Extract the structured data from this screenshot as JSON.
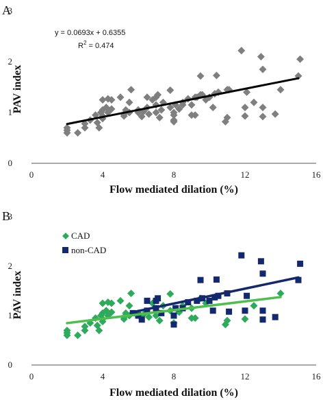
{
  "chart_data": [
    {
      "panel_label": "A",
      "type": "scatter",
      "xlabel": "Flow mediated dilation (%)",
      "ylabel": "PAV index",
      "xlim": [
        0,
        16
      ],
      "ylim": [
        0,
        3
      ],
      "xticks": [
        0,
        4,
        8,
        12,
        16
      ],
      "yticks": [
        0,
        1,
        2,
        3
      ],
      "grid": false,
      "annotation": {
        "equation": "y = 0.0693x + 0.6355",
        "r2_prefix": "R",
        "r2_sup": "2",
        "r2_suffix": " = 0.474"
      },
      "trendline": {
        "slope": 0.0693,
        "intercept": 0.6355,
        "x_range": [
          2.0,
          15.0
        ],
        "color": "#000000"
      },
      "series": [
        {
          "marker": "diamond",
          "color": "#7f7f7f",
          "points": [
            [
              2.0,
              0.6
            ],
            [
              2.0,
              0.65
            ],
            [
              2.0,
              0.7
            ],
            [
              2.6,
              0.6
            ],
            [
              3.0,
              0.7
            ],
            [
              3.0,
              0.78
            ],
            [
              3.3,
              0.85
            ],
            [
              3.6,
              0.95
            ],
            [
              3.7,
              0.8
            ],
            [
              3.8,
              0.7
            ],
            [
              3.9,
              1.0
            ],
            [
              4.0,
              0.88
            ],
            [
              4.0,
              0.93
            ],
            [
              4.0,
              1.05
            ],
            [
              4.0,
              1.25
            ],
            [
              4.2,
              1.1
            ],
            [
              4.3,
              1.0
            ],
            [
              4.3,
              1.27
            ],
            [
              4.5,
              1.25
            ],
            [
              4.5,
              1.07
            ],
            [
              5.0,
              1.3
            ],
            [
              5.2,
              0.97
            ],
            [
              5.2,
              0.93
            ],
            [
              5.3,
              1.05
            ],
            [
              5.5,
              1.0
            ],
            [
              5.5,
              1.2
            ],
            [
              5.6,
              1.45
            ],
            [
              6.0,
              1.05
            ],
            [
              6.0,
              1.0
            ],
            [
              6.2,
              0.92
            ],
            [
              6.3,
              1.02
            ],
            [
              6.5,
              1.3
            ],
            [
              6.5,
              1.1
            ],
            [
              6.6,
              0.97
            ],
            [
              6.8,
              1.25
            ],
            [
              7.0,
              1.3
            ],
            [
              7.0,
              1.15
            ],
            [
              7.0,
              1.0
            ],
            [
              7.1,
              1.35
            ],
            [
              7.2,
              0.9
            ],
            [
              7.3,
              1.05
            ],
            [
              7.4,
              1.2
            ],
            [
              7.8,
              1.44
            ],
            [
              7.8,
              1.1
            ],
            [
              8.0,
              1.0
            ],
            [
              8.0,
              0.95
            ],
            [
              8.0,
              0.85
            ],
            [
              8.0,
              0.82
            ],
            [
              8.1,
              1.15
            ],
            [
              8.3,
              1.07
            ],
            [
              8.5,
              1.2
            ],
            [
              8.5,
              1.15
            ],
            [
              8.8,
              1.27
            ],
            [
              9.0,
              0.95
            ],
            [
              9.0,
              1.15
            ],
            [
              9.2,
              0.95
            ],
            [
              9.2,
              1.3
            ],
            [
              9.3,
              1.3
            ],
            [
              9.5,
              1.35
            ],
            [
              9.5,
              1.72
            ],
            [
              9.6,
              1.35
            ],
            [
              9.8,
              1.25
            ],
            [
              10.0,
              1.3
            ],
            [
              10.2,
              1.1
            ],
            [
              10.3,
              1.37
            ],
            [
              10.4,
              1.73
            ],
            [
              10.5,
              1.4
            ],
            [
              10.9,
              0.82
            ],
            [
              11.0,
              1.45
            ],
            [
              11.0,
              0.9
            ],
            [
              11.1,
              1.45
            ],
            [
              11.8,
              2.22
            ],
            [
              12.0,
              1.1
            ],
            [
              12.0,
              0.93
            ],
            [
              12.1,
              1.4
            ],
            [
              12.5,
              1.2
            ],
            [
              12.9,
              2.1
            ],
            [
              13.0,
              1.85
            ],
            [
              13.0,
              1.1
            ],
            [
              13.0,
              0.92
            ],
            [
              13.7,
              0.97
            ],
            [
              14.0,
              1.45
            ],
            [
              15.0,
              1.72
            ],
            [
              15.1,
              2.05
            ]
          ]
        }
      ]
    },
    {
      "panel_label": "B",
      "type": "scatter",
      "xlabel": "Flow mediated dilation (%)",
      "ylabel": "PAV index",
      "xlim": [
        0,
        16
      ],
      "ylim": [
        0,
        3
      ],
      "xticks": [
        0,
        4,
        8,
        12,
        16
      ],
      "yticks": [
        0,
        1,
        2,
        3
      ],
      "grid": false,
      "legend_position": "top-left",
      "series": [
        {
          "name": "CAD",
          "marker": "diamond",
          "color": "#2eaa5c",
          "trendline": {
            "slope": 0.044,
            "intercept": 0.76,
            "x_range": [
              2.0,
              14.0
            ],
            "color": "#4cbf4c"
          },
          "points": [
            [
              2.0,
              0.6
            ],
            [
              2.0,
              0.65
            ],
            [
              2.0,
              0.7
            ],
            [
              2.6,
              0.6
            ],
            [
              3.0,
              0.7
            ],
            [
              3.0,
              0.78
            ],
            [
              3.3,
              0.85
            ],
            [
              3.6,
              0.95
            ],
            [
              3.7,
              0.8
            ],
            [
              3.8,
              0.7
            ],
            [
              3.9,
              1.0
            ],
            [
              4.0,
              0.88
            ],
            [
              4.0,
              0.93
            ],
            [
              4.0,
              1.05
            ],
            [
              4.0,
              1.25
            ],
            [
              4.2,
              1.1
            ],
            [
              4.3,
              1.0
            ],
            [
              4.3,
              1.27
            ],
            [
              4.5,
              1.25
            ],
            [
              4.5,
              1.07
            ],
            [
              5.0,
              1.3
            ],
            [
              5.2,
              0.97
            ],
            [
              5.2,
              0.93
            ],
            [
              5.3,
              1.05
            ],
            [
              5.5,
              1.0
            ],
            [
              5.5,
              1.2
            ],
            [
              5.6,
              1.45
            ],
            [
              6.0,
              1.05
            ],
            [
              6.3,
              1.02
            ],
            [
              6.6,
              0.97
            ],
            [
              6.8,
              1.25
            ],
            [
              7.0,
              1.0
            ],
            [
              7.2,
              0.9
            ],
            [
              7.4,
              1.2
            ],
            [
              7.8,
              1.44
            ],
            [
              7.8,
              1.1
            ],
            [
              8.0,
              0.85
            ],
            [
              8.3,
              1.07
            ],
            [
              8.5,
              1.2
            ],
            [
              9.0,
              0.95
            ],
            [
              9.0,
              1.15
            ],
            [
              9.2,
              0.95
            ],
            [
              9.5,
              1.35
            ],
            [
              9.8,
              1.25
            ],
            [
              10.9,
              0.82
            ],
            [
              11.0,
              0.9
            ],
            [
              12.0,
              0.93
            ],
            [
              12.5,
              1.2
            ],
            [
              14.0,
              1.45
            ]
          ]
        },
        {
          "name": "non-CAD",
          "marker": "square",
          "color": "#14286e",
          "trendline": {
            "slope": 0.0755,
            "intercept": 0.64,
            "x_range": [
              5.7,
              15.0
            ],
            "color": "#14286e"
          },
          "points": [
            [
              5.7,
              1.05
            ],
            [
              6.0,
              1.0
            ],
            [
              6.2,
              0.92
            ],
            [
              6.5,
              1.3
            ],
            [
              6.5,
              1.1
            ],
            [
              7.0,
              1.3
            ],
            [
              7.0,
              1.15
            ],
            [
              7.1,
              1.35
            ],
            [
              7.3,
              1.05
            ],
            [
              8.0,
              1.0
            ],
            [
              8.0,
              0.82
            ],
            [
              8.1,
              1.15
            ],
            [
              8.5,
              1.15
            ],
            [
              8.8,
              1.27
            ],
            [
              9.3,
              1.3
            ],
            [
              9.5,
              1.72
            ],
            [
              9.6,
              1.35
            ],
            [
              10.0,
              1.3
            ],
            [
              10.2,
              1.1
            ],
            [
              10.3,
              1.37
            ],
            [
              10.4,
              1.73
            ],
            [
              10.5,
              1.4
            ],
            [
              11.0,
              1.45
            ],
            [
              11.1,
              1.08
            ],
            [
              11.8,
              2.22
            ],
            [
              12.0,
              1.1
            ],
            [
              12.1,
              1.4
            ],
            [
              12.9,
              2.1
            ],
            [
              13.0,
              1.85
            ],
            [
              13.0,
              1.1
            ],
            [
              13.0,
              0.92
            ],
            [
              13.7,
              0.97
            ],
            [
              15.0,
              1.72
            ],
            [
              15.1,
              2.05
            ]
          ]
        }
      ]
    }
  ]
}
